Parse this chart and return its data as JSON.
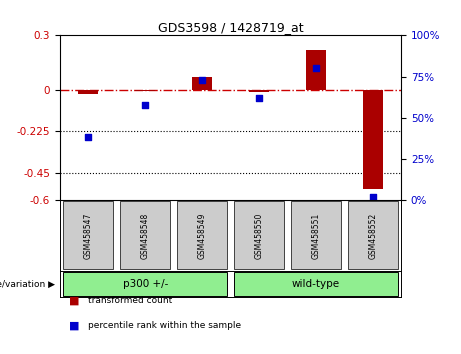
{
  "title": "GDS3598 / 1428719_at",
  "samples": [
    "GSM458547",
    "GSM458548",
    "GSM458549",
    "GSM458550",
    "GSM458551",
    "GSM458552"
  ],
  "red_values": [
    -0.02,
    -0.005,
    0.07,
    -0.01,
    0.22,
    -0.54
  ],
  "blue_values_pct": [
    38,
    58,
    73,
    62,
    80,
    2
  ],
  "ylim_left": [
    -0.6,
    0.3
  ],
  "ylim_right": [
    0,
    100
  ],
  "yticks_left": [
    0.3,
    0,
    -0.225,
    -0.45,
    -0.6
  ],
  "yticks_right": [
    100,
    75,
    50,
    25,
    0
  ],
  "hline_dotted": [
    -0.225,
    -0.45
  ],
  "groups": [
    {
      "label": "p300 +/-",
      "indices": [
        0,
        1,
        2
      ],
      "color": "#90EE90"
    },
    {
      "label": "wild-type",
      "indices": [
        3,
        4,
        5
      ],
      "color": "#90EE90"
    }
  ],
  "group_row_label": "genotype/variation",
  "legend_red": "transformed count",
  "legend_blue": "percentile rank within the sample",
  "bar_color": "#AA0000",
  "dot_color": "#0000CC",
  "zero_line_color": "#CC0000",
  "dotted_line_color": "#000000",
  "background_plot": "#FFFFFF",
  "sample_box_color": "#CCCCCC",
  "bar_width": 0.35
}
